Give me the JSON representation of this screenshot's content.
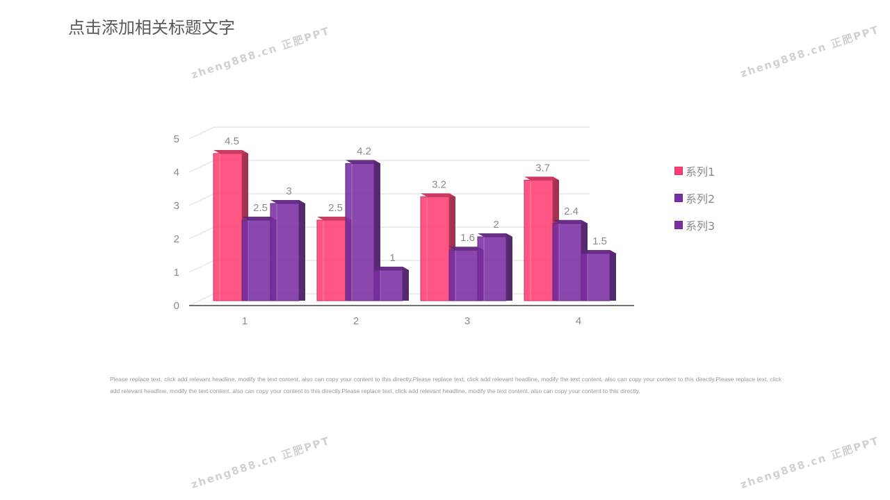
{
  "slide": {
    "title": "点击添加相关标题文字",
    "body_text": "Please replace text, click add relevant headline, modify the text content, also can copy your content to this directly.Please replace text, click add relevant headline, modify the text content, also can copy your content to this directly.Please replace text, click add relevant headline, modify the text content, also can copy your content to this directly.Please replace text, click add relevant headline, modify the text content, also can copy your content to this directly.",
    "watermark": "zheng888.cn 正肥PPT"
  },
  "chart_data": {
    "type": "bar",
    "title": "",
    "xlabel": "",
    "ylabel": "",
    "categories": [
      "1",
      "2",
      "3",
      "4"
    ],
    "y_ticks": [
      "0",
      "1",
      "2",
      "3",
      "4",
      "5"
    ],
    "ylim": [
      0,
      5
    ],
    "grid": true,
    "legend_position": "right",
    "series": [
      {
        "name": "系列1",
        "color": "#ff3f73",
        "values": [
          4.5,
          2.5,
          3.2,
          3.7
        ]
      },
      {
        "name": "系列2",
        "color": "#7a2fa3",
        "values": [
          2.5,
          4.2,
          1.6,
          2.4
        ]
      },
      {
        "name": "系列3",
        "color": "#7a2fa3",
        "values": [
          3,
          1,
          2,
          1.5
        ]
      }
    ]
  }
}
